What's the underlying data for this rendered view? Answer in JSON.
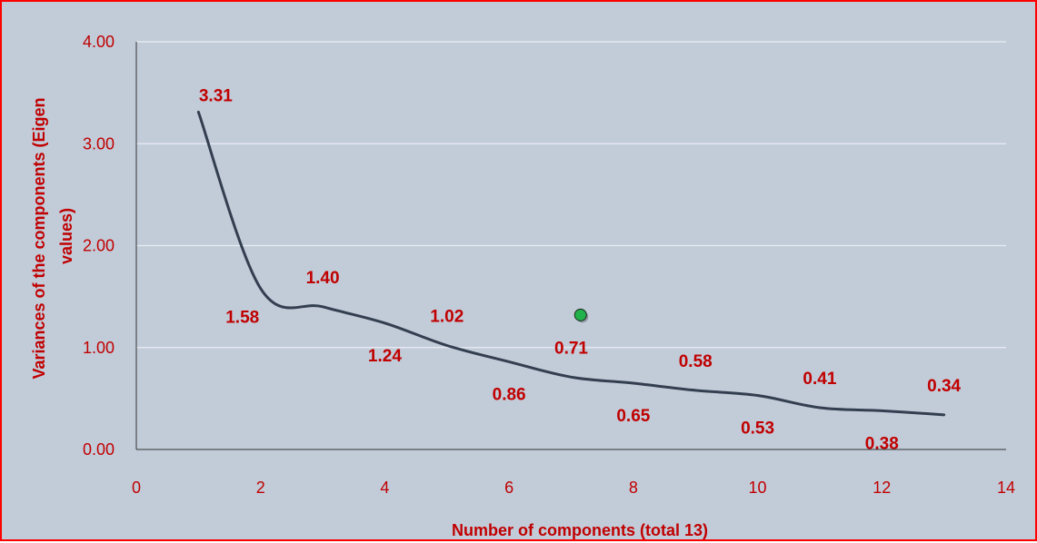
{
  "chart_data": {
    "type": "line",
    "title": "",
    "xlabel": "Number of components (total 13)",
    "ylabel_line1": "Variances of the components (Eigen",
    "ylabel_line2": "values)",
    "xlim": [
      0,
      14
    ],
    "ylim": [
      0,
      4
    ],
    "x_ticks": [
      0,
      2,
      4,
      6,
      8,
      10,
      12,
      14
    ],
    "x_tick_labels": [
      "0",
      "2",
      "4",
      "6",
      "8",
      "10",
      "12",
      "14"
    ],
    "y_ticks": [
      0,
      1,
      2,
      3,
      4
    ],
    "y_tick_labels": [
      "0.00",
      "1.00",
      "2.00",
      "3.00",
      "4.00"
    ],
    "grid": true,
    "smooth": true,
    "series": [
      {
        "x": [
          1,
          2,
          3,
          4,
          5,
          6,
          7,
          8,
          9,
          10,
          11,
          12,
          13
        ],
        "values": [
          3.31,
          1.58,
          1.4,
          1.24,
          1.02,
          0.86,
          0.71,
          0.65,
          0.58,
          0.53,
          0.41,
          0.38,
          0.34
        ],
        "labels": [
          "3.31",
          "1.58",
          "1.40",
          "1.24",
          "1.02",
          "0.86",
          "0.71",
          "0.65",
          "0.58",
          "0.53",
          "0.41",
          "0.38",
          "0.34"
        ],
        "color": "#333f50"
      }
    ],
    "marker_point": {
      "x": 7.15,
      "y": 1.32,
      "color": "#22b24c"
    },
    "colors": {
      "background": "#c2ccd9",
      "border": "#ff0000",
      "text": "#c00000",
      "grid": "#e8edf3",
      "axis": "#333333"
    }
  }
}
